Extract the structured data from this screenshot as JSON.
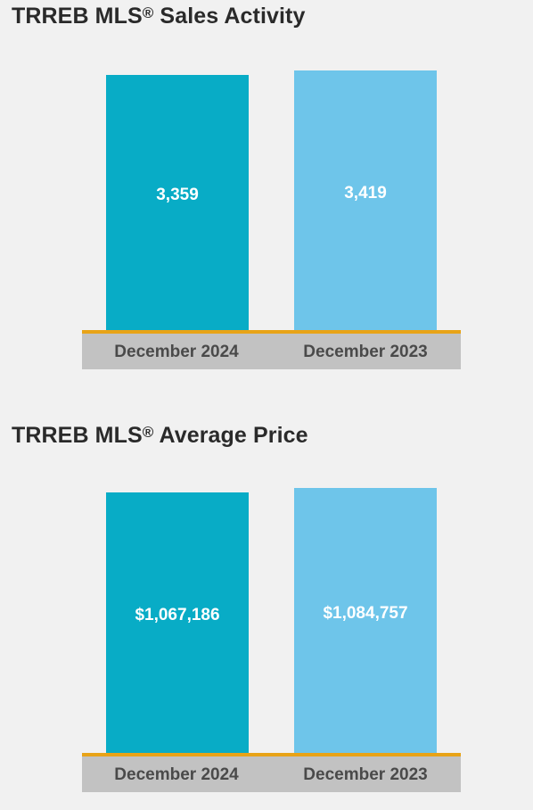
{
  "chart_data": [
    {
      "type": "bar",
      "title": "TRREB MLS",
      "title_mark": "®",
      "title_suffix": " Sales Activity",
      "categories": [
        "December 2024",
        "December 2023"
      ],
      "values": [
        3359,
        3419
      ],
      "value_labels": [
        "3,359",
        "3,419"
      ],
      "colors": [
        "#08acc6",
        "#6ec5ea"
      ],
      "baseline_color": "#e8a317",
      "ylim": [
        0,
        3520
      ],
      "grid": false
    },
    {
      "type": "bar",
      "title": "TRREB MLS",
      "title_mark": "®",
      "title_suffix": " Average Price",
      "categories": [
        "December 2024",
        "December 2023"
      ],
      "values": [
        1067186,
        1084757
      ],
      "value_labels": [
        "$1,067,186",
        "$1,084,757"
      ],
      "colors": [
        "#08acc6",
        "#6ec5ea"
      ],
      "baseline_color": "#e8a317",
      "ylim": [
        0,
        1104000
      ],
      "grid": false
    }
  ]
}
